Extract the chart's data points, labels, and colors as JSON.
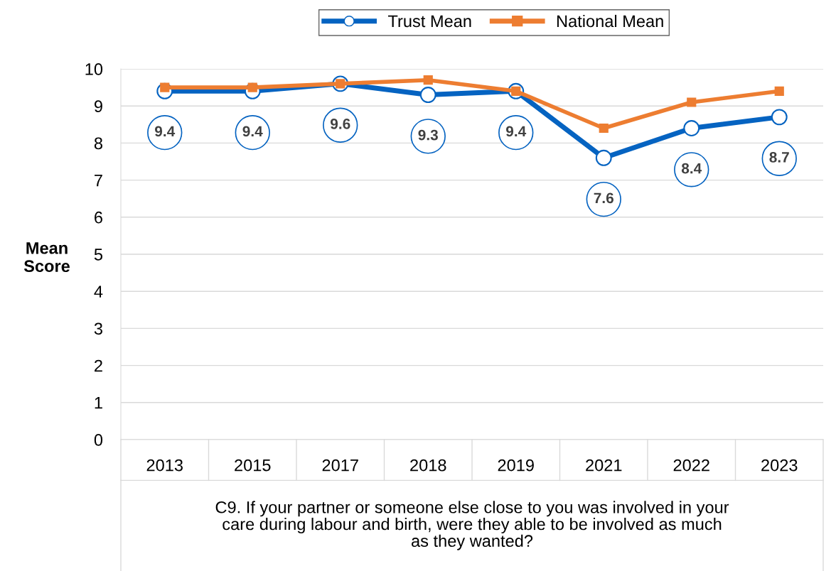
{
  "chart_data": {
    "type": "line",
    "ylabel": "Mean\nScore",
    "xlabel": "C9. If your partner or someone else close to you was involved in your\ncare during labour and birth, were they able to be involved as much\nas they wanted?",
    "categories": [
      "2013",
      "2015",
      "2017",
      "2018",
      "2019",
      "2021",
      "2022",
      "2023"
    ],
    "series": [
      {
        "name": "Trust Mean",
        "color": "#0563c1",
        "marker": "circle",
        "values": [
          9.4,
          9.4,
          9.6,
          9.3,
          9.4,
          7.6,
          8.4,
          8.7
        ],
        "value_labels": [
          "9.4",
          "9.4",
          "9.6",
          "9.3",
          "9.4",
          "7.6",
          "8.4",
          "8.7"
        ]
      },
      {
        "name": "National Mean",
        "color": "#ed7d31",
        "marker": "square",
        "values": [
          9.5,
          9.5,
          9.6,
          9.7,
          9.4,
          8.4,
          9.1,
          9.4
        ]
      }
    ],
    "ylim": [
      0,
      10
    ],
    "yticks": [
      0,
      1,
      2,
      3,
      4,
      5,
      6,
      7,
      8,
      9,
      10
    ],
    "grid": "y",
    "legend": "top"
  }
}
